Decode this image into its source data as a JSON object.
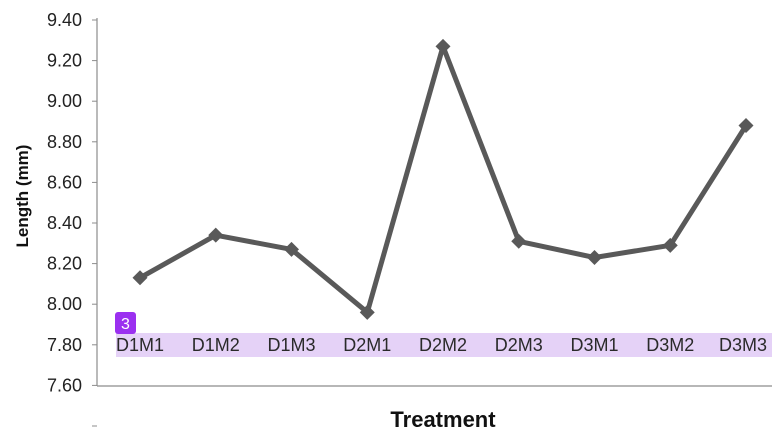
{
  "chart_data": {
    "type": "line",
    "title": "",
    "xlabel": "Treatment",
    "ylabel": "Length (mm)",
    "categories": [
      "D1M1",
      "D1M2",
      "D1M3",
      "D2M1",
      "D2M2",
      "D2M3",
      "D3M1",
      "D3M2",
      "D3M3"
    ],
    "series": [
      {
        "values": [
          8.13,
          8.34,
          8.27,
          7.96,
          9.27,
          8.31,
          8.23,
          8.29,
          8.88
        ]
      }
    ],
    "yticks": [
      "9.40",
      "9.20",
      "9.00",
      "8.80",
      "8.60",
      "8.40",
      "8.20",
      "8.00",
      "7.80",
      "7.60"
    ],
    "ylim": [
      7.6,
      9.4
    ],
    "grid": false,
    "marker": "diamond",
    "line_color": "#595959",
    "highlight_color": "#e5d2f7",
    "badge_color": "#9b30f0"
  },
  "annotations": {
    "badge_label": "3"
  }
}
